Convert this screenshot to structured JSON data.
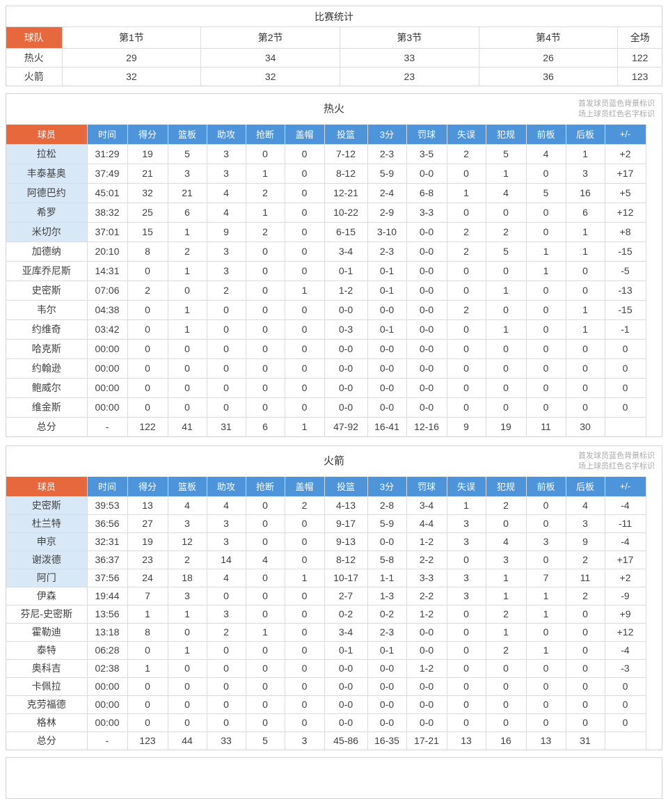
{
  "colors": {
    "accent_orange": "#e8683d",
    "header_blue": "#4d94db",
    "starter_row_blue": "#d9e8f7",
    "legend_gray": "#aaaaaa"
  },
  "score_table": {
    "title": "比赛统计",
    "header": [
      "球队",
      "第1节",
      "第2节",
      "第3节",
      "第4节",
      "全场"
    ],
    "rows": [
      {
        "team": "热火",
        "values": [
          "29",
          "34",
          "33",
          "26",
          "122"
        ]
      },
      {
        "team": "火箭",
        "values": [
          "32",
          "32",
          "23",
          "36",
          "123"
        ]
      }
    ]
  },
  "legend": {
    "line1": "首发球员蓝色背景标识",
    "line2": "场上球员红色名字标识"
  },
  "stat_header": [
    "球员",
    "时间",
    "得分",
    "篮板",
    "助攻",
    "抢断",
    "盖帽",
    "投篮",
    "3分",
    "罚球",
    "失误",
    "犯规",
    "前板",
    "后板",
    "+/-"
  ],
  "teams": [
    {
      "name": "热火",
      "players": [
        {
          "name": "拉松",
          "starter": true,
          "stats": [
            "31:29",
            "19",
            "5",
            "3",
            "0",
            "0",
            "7-12",
            "2-3",
            "3-5",
            "2",
            "5",
            "4",
            "1",
            "+2"
          ]
        },
        {
          "name": "丰泰基奥",
          "starter": true,
          "stats": [
            "37:49",
            "21",
            "3",
            "3",
            "1",
            "0",
            "8-12",
            "5-9",
            "0-0",
            "0",
            "1",
            "0",
            "3",
            "+17"
          ]
        },
        {
          "name": "阿德巴约",
          "starter": true,
          "stats": [
            "45:01",
            "32",
            "21",
            "4",
            "2",
            "0",
            "12-21",
            "2-4",
            "6-8",
            "1",
            "4",
            "5",
            "16",
            "+5"
          ]
        },
        {
          "name": "希罗",
          "starter": true,
          "stats": [
            "38:32",
            "25",
            "6",
            "4",
            "1",
            "0",
            "10-22",
            "2-9",
            "3-3",
            "0",
            "0",
            "0",
            "6",
            "+12"
          ]
        },
        {
          "name": "米切尔",
          "starter": true,
          "stats": [
            "37:01",
            "15",
            "1",
            "9",
            "2",
            "0",
            "6-15",
            "3-10",
            "0-0",
            "2",
            "2",
            "0",
            "1",
            "+8"
          ]
        },
        {
          "name": "加德纳",
          "starter": false,
          "stats": [
            "20:10",
            "8",
            "2",
            "3",
            "0",
            "0",
            "3-4",
            "2-3",
            "0-0",
            "2",
            "5",
            "1",
            "1",
            "-15"
          ]
        },
        {
          "name": "亚库乔尼斯",
          "starter": false,
          "stats": [
            "14:31",
            "0",
            "1",
            "3",
            "0",
            "0",
            "0-1",
            "0-1",
            "0-0",
            "0",
            "0",
            "1",
            "0",
            "-5"
          ]
        },
        {
          "name": "史密斯",
          "starter": false,
          "stats": [
            "07:06",
            "2",
            "0",
            "2",
            "0",
            "1",
            "1-2",
            "0-1",
            "0-0",
            "0",
            "1",
            "0",
            "0",
            "-13"
          ]
        },
        {
          "name": "韦尔",
          "starter": false,
          "stats": [
            "04:38",
            "0",
            "1",
            "0",
            "0",
            "0",
            "0-0",
            "0-0",
            "0-0",
            "2",
            "0",
            "0",
            "1",
            "-15"
          ]
        },
        {
          "name": "约维奇",
          "starter": false,
          "stats": [
            "03:42",
            "0",
            "1",
            "0",
            "0",
            "0",
            "0-3",
            "0-1",
            "0-0",
            "0",
            "1",
            "0",
            "1",
            "-1"
          ]
        },
        {
          "name": "哈克斯",
          "starter": false,
          "stats": [
            "00:00",
            "0",
            "0",
            "0",
            "0",
            "0",
            "0-0",
            "0-0",
            "0-0",
            "0",
            "0",
            "0",
            "0",
            "0"
          ]
        },
        {
          "name": "约翰逊",
          "starter": false,
          "stats": [
            "00:00",
            "0",
            "0",
            "0",
            "0",
            "0",
            "0-0",
            "0-0",
            "0-0",
            "0",
            "0",
            "0",
            "0",
            "0"
          ]
        },
        {
          "name": "鲍威尔",
          "starter": false,
          "stats": [
            "00:00",
            "0",
            "0",
            "0",
            "0",
            "0",
            "0-0",
            "0-0",
            "0-0",
            "0",
            "0",
            "0",
            "0",
            "0"
          ]
        },
        {
          "name": "维金斯",
          "starter": false,
          "stats": [
            "00:00",
            "0",
            "0",
            "0",
            "0",
            "0",
            "0-0",
            "0-0",
            "0-0",
            "0",
            "0",
            "0",
            "0",
            "0"
          ]
        }
      ],
      "total": {
        "name": "总分",
        "stats": [
          "-",
          "122",
          "41",
          "31",
          "6",
          "1",
          "47-92",
          "16-41",
          "12-16",
          "9",
          "19",
          "11",
          "30",
          ""
        ]
      }
    },
    {
      "name": "火箭",
      "players": [
        {
          "name": "史密斯",
          "starter": true,
          "stats": [
            "39:53",
            "13",
            "4",
            "4",
            "0",
            "2",
            "4-13",
            "2-8",
            "3-4",
            "1",
            "2",
            "0",
            "4",
            "-4"
          ]
        },
        {
          "name": "杜兰特",
          "starter": true,
          "stats": [
            "36:56",
            "27",
            "3",
            "3",
            "0",
            "0",
            "9-17",
            "5-9",
            "4-4",
            "3",
            "0",
            "0",
            "3",
            "-11"
          ]
        },
        {
          "name": "申京",
          "starter": true,
          "stats": [
            "32:31",
            "19",
            "12",
            "3",
            "0",
            "0",
            "9-13",
            "0-0",
            "1-2",
            "3",
            "4",
            "3",
            "9",
            "-4"
          ]
        },
        {
          "name": "谢泼德",
          "starter": true,
          "stats": [
            "36:37",
            "23",
            "2",
            "14",
            "4",
            "0",
            "8-12",
            "5-8",
            "2-2",
            "0",
            "3",
            "0",
            "2",
            "+17"
          ]
        },
        {
          "name": "阿门",
          "starter": true,
          "stats": [
            "37:56",
            "24",
            "18",
            "4",
            "0",
            "1",
            "10-17",
            "1-1",
            "3-3",
            "3",
            "1",
            "7",
            "11",
            "+2"
          ]
        },
        {
          "name": "伊森",
          "starter": false,
          "stats": [
            "19:44",
            "7",
            "3",
            "0",
            "0",
            "0",
            "2-7",
            "1-3",
            "2-2",
            "3",
            "1",
            "1",
            "2",
            "-9"
          ]
        },
        {
          "name": "芬尼-史密斯",
          "starter": false,
          "stats": [
            "13:56",
            "1",
            "1",
            "3",
            "0",
            "0",
            "0-2",
            "0-2",
            "1-2",
            "0",
            "2",
            "1",
            "0",
            "+9"
          ]
        },
        {
          "name": "霍勒迪",
          "starter": false,
          "stats": [
            "13:18",
            "8",
            "0",
            "2",
            "1",
            "0",
            "3-4",
            "2-3",
            "0-0",
            "0",
            "1",
            "0",
            "0",
            "+12"
          ]
        },
        {
          "name": "泰特",
          "starter": false,
          "stats": [
            "06:28",
            "0",
            "1",
            "0",
            "0",
            "0",
            "0-1",
            "0-1",
            "0-0",
            "0",
            "2",
            "1",
            "0",
            "-4"
          ]
        },
        {
          "name": "奥科吉",
          "starter": false,
          "stats": [
            "02:38",
            "1",
            "0",
            "0",
            "0",
            "0",
            "0-0",
            "0-0",
            "1-2",
            "0",
            "0",
            "0",
            "0",
            "-3"
          ]
        },
        {
          "name": "卡佩拉",
          "starter": false,
          "stats": [
            "00:00",
            "0",
            "0",
            "0",
            "0",
            "0",
            "0-0",
            "0-0",
            "0-0",
            "0",
            "0",
            "0",
            "0",
            "0"
          ]
        },
        {
          "name": "克劳福德",
          "starter": false,
          "stats": [
            "00:00",
            "0",
            "0",
            "0",
            "0",
            "0",
            "0-0",
            "0-0",
            "0-0",
            "0",
            "0",
            "0",
            "0",
            "0"
          ]
        },
        {
          "name": "格林",
          "starter": false,
          "stats": [
            "00:00",
            "0",
            "0",
            "0",
            "0",
            "0",
            "0-0",
            "0-0",
            "0-0",
            "0",
            "0",
            "0",
            "0",
            "0"
          ]
        }
      ],
      "total": {
        "name": "总分",
        "stats": [
          "-",
          "123",
          "44",
          "33",
          "5",
          "3",
          "45-86",
          "16-35",
          "17-21",
          "13",
          "16",
          "13",
          "31",
          ""
        ]
      }
    }
  ]
}
